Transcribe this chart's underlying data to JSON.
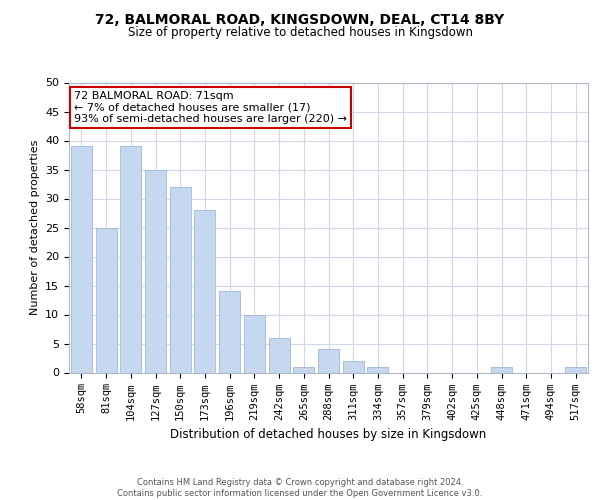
{
  "title": "72, BALMORAL ROAD, KINGSDOWN, DEAL, CT14 8BY",
  "subtitle": "Size of property relative to detached houses in Kingsdown",
  "xlabel": "Distribution of detached houses by size in Kingsdown",
  "ylabel": "Number of detached properties",
  "categories": [
    "58sqm",
    "81sqm",
    "104sqm",
    "127sqm",
    "150sqm",
    "173sqm",
    "196sqm",
    "219sqm",
    "242sqm",
    "265sqm",
    "288sqm",
    "311sqm",
    "334sqm",
    "357sqm",
    "379sqm",
    "402sqm",
    "425sqm",
    "448sqm",
    "471sqm",
    "494sqm",
    "517sqm"
  ],
  "values": [
    39,
    25,
    39,
    35,
    32,
    28,
    14,
    10,
    6,
    1,
    4,
    2,
    1,
    0,
    0,
    0,
    0,
    1,
    0,
    0,
    1
  ],
  "bar_color": "#c5d8f0",
  "bar_edge_color": "#a0b8d8",
  "annotation_text": "72 BALMORAL ROAD: 71sqm\n← 7% of detached houses are smaller (17)\n93% of semi-detached houses are larger (220) →",
  "annotation_box_color": "#ffffff",
  "annotation_box_edge_color": "#cc0000",
  "ylim": [
    0,
    50
  ],
  "yticks": [
    0,
    5,
    10,
    15,
    20,
    25,
    30,
    35,
    40,
    45,
    50
  ],
  "footer": "Contains HM Land Registry data © Crown copyright and database right 2024.\nContains public sector information licensed under the Open Government Licence v3.0.",
  "background_color": "#ffffff",
  "grid_color": "#d0d8e8",
  "title_fontsize": 10,
  "subtitle_fontsize": 8.5,
  "ylabel_fontsize": 8,
  "xlabel_fontsize": 8.5,
  "tick_fontsize": 7.5,
  "ytick_fontsize": 8,
  "footer_fontsize": 6,
  "annotation_fontsize": 8
}
